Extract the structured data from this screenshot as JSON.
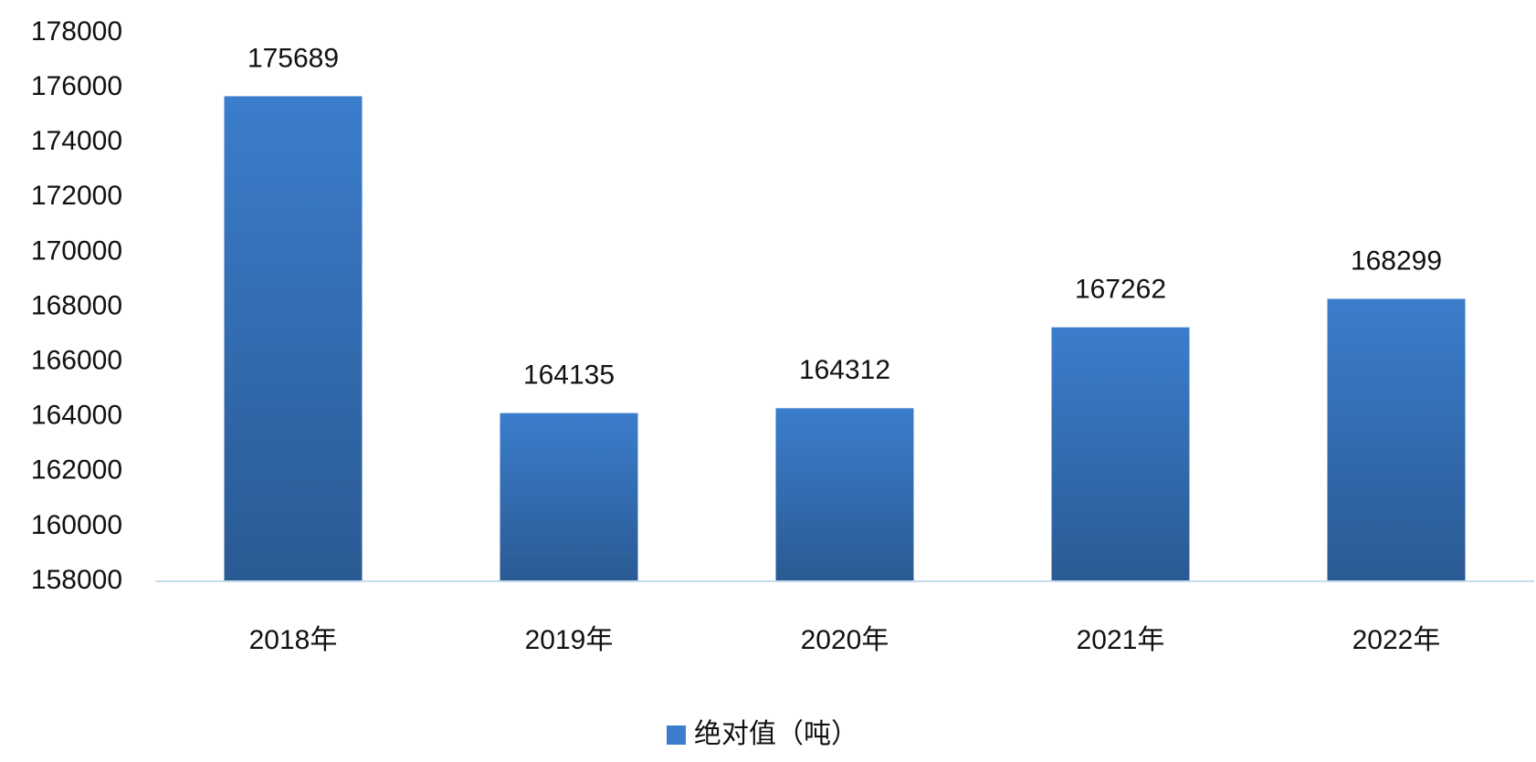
{
  "chart_data": {
    "type": "bar",
    "categories": [
      "2018年",
      "2019年",
      "2020年",
      "2021年",
      "2022年"
    ],
    "series": [
      {
        "name": "绝对值（吨）",
        "color": "#3b7dcc",
        "values": [
          175689,
          164135,
          164312,
          167262,
          168299
        ]
      }
    ],
    "ylim": [
      158000,
      178000
    ],
    "yticks": [
      158000,
      160000,
      162000,
      164000,
      166000,
      168000,
      170000,
      172000,
      174000,
      176000,
      178000
    ],
    "grid": false,
    "legend": "bottom"
  }
}
